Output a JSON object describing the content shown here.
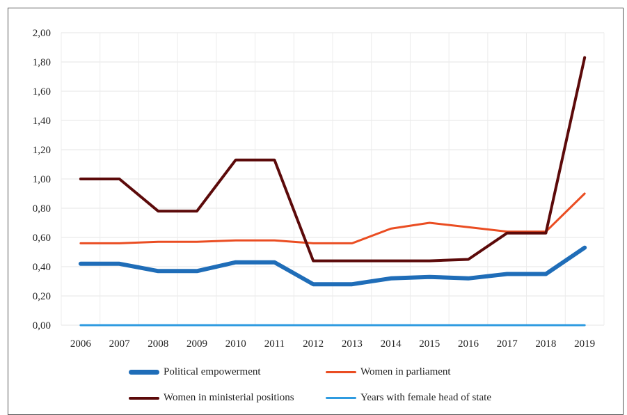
{
  "chart_data": {
    "type": "line",
    "x": [
      2006,
      2007,
      2008,
      2009,
      2010,
      2011,
      2012,
      2013,
      2014,
      2015,
      2016,
      2017,
      2018,
      2019
    ],
    "x_tick_labels": [
      "2006",
      "2007",
      "2008",
      "2009",
      "2010",
      "2011",
      "2012",
      "2013",
      "2014",
      "2015",
      "2016",
      "2017",
      "2018",
      "2019"
    ],
    "y_tick_labels": [
      "0,00",
      "0,20",
      "0,40",
      "0,60",
      "0,80",
      "1,00",
      "1,20",
      "1,40",
      "1,60",
      "1,80",
      "2,00"
    ],
    "ylim": [
      0,
      2
    ],
    "grid": true,
    "legend_position": "bottom",
    "series": [
      {
        "name": "Political empowerment",
        "color": "#1F6DB8",
        "width": 6,
        "values": [
          0.42,
          0.42,
          0.37,
          0.37,
          0.43,
          0.43,
          0.28,
          0.28,
          0.32,
          0.33,
          0.32,
          0.35,
          0.35,
          0.53
        ]
      },
      {
        "name": "Women in parliament",
        "color": "#EA4D22",
        "width": 3,
        "values": [
          0.56,
          0.56,
          0.57,
          0.57,
          0.58,
          0.58,
          0.56,
          0.56,
          0.66,
          0.7,
          0.67,
          0.64,
          0.64,
          0.9
        ]
      },
      {
        "name": "Women in ministerial positions",
        "color": "#5C0A0A",
        "width": 4,
        "values": [
          1.0,
          1.0,
          0.78,
          0.78,
          1.13,
          1.13,
          0.44,
          0.44,
          0.44,
          0.44,
          0.45,
          0.63,
          0.63,
          1.83
        ]
      },
      {
        "name": "Years with female head of state",
        "color": "#2F9BE0",
        "width": 3,
        "values": [
          0,
          0,
          0,
          0,
          0,
          0,
          0,
          0,
          0,
          0,
          0,
          0,
          0,
          0
        ]
      }
    ]
  }
}
